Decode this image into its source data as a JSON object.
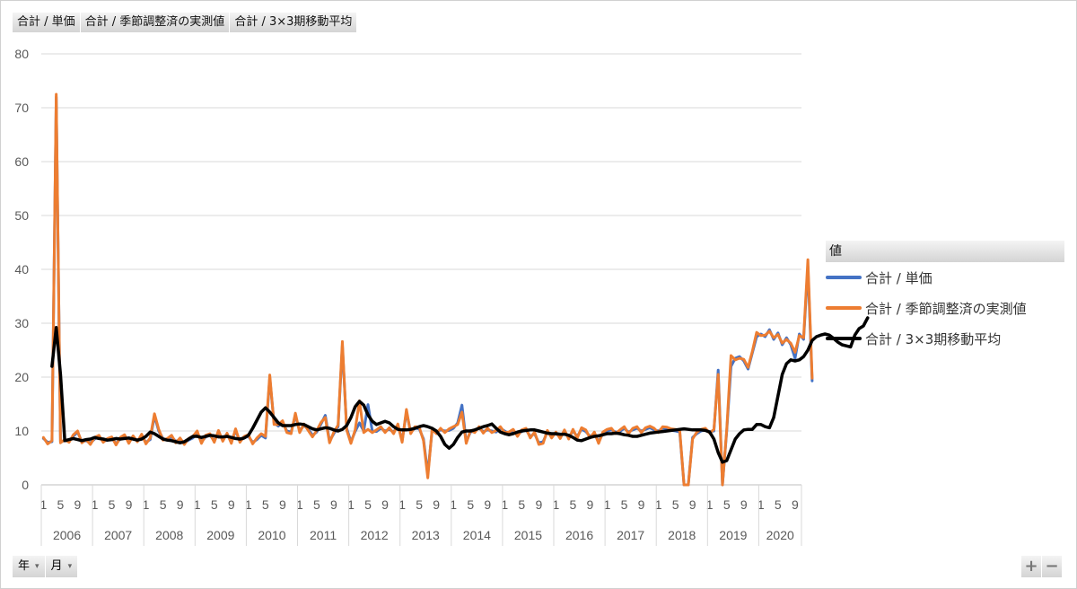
{
  "field_pills": [
    "合計 / 単価",
    "合計 / 季節調整済の実測値",
    "合計 / 3×3期移動平均"
  ],
  "legend": {
    "title": "値",
    "items": [
      {
        "label": "合計 / 単価",
        "color": "#4472C4"
      },
      {
        "label": "合計 / 季節調整済の実測値",
        "color": "#ED7D31"
      },
      {
        "label": "合計 / 3×3期移動平均",
        "color": "#000000"
      }
    ]
  },
  "axis_buttons": [
    {
      "label": "年",
      "arrow": "▾"
    },
    {
      "label": "月",
      "arrow": "▾"
    }
  ],
  "zoom": {
    "plus": "+",
    "minus": "−"
  },
  "chart_data": {
    "type": "line",
    "ylim": [
      0,
      80
    ],
    "yticks": [
      0,
      10,
      20,
      30,
      40,
      50,
      60,
      70,
      80
    ],
    "grid": true,
    "legend_position": "right",
    "x_month_labels": [
      "1",
      "5",
      "9"
    ],
    "years": [
      "2006",
      "2007",
      "2008",
      "2009",
      "2010",
      "2011",
      "2012",
      "2013",
      "2014",
      "2015",
      "2016",
      "2017",
      "2018",
      "2019",
      "2020"
    ],
    "months_in_last_year": 10,
    "series": [
      {
        "name": "合計 / 単価",
        "color": "#4472C4",
        "width": 3,
        "values": [
          8.6,
          7.9,
          8.0,
          72,
          8.0,
          8.2,
          8.1,
          9.0,
          9.8,
          8.0,
          8.2,
          7.8,
          8.5,
          9.0,
          8.1,
          8.3,
          8.6,
          7.7,
          8.5,
          9.0,
          8.0,
          8.8,
          8.2,
          9.1,
          7.9,
          8.4,
          12.8,
          10.0,
          8.6,
          8.3,
          8.9,
          8.1,
          8.4,
          7.8,
          8.3,
          8.7,
          9.6,
          8.0,
          8.9,
          9.2,
          8.2,
          9.7,
          8.4,
          9.3,
          8.0,
          10.0,
          8.2,
          8.7,
          9.0,
          7.9,
          8.4,
          9.2,
          8.7,
          19.9,
          11.5,
          10.9,
          11.6,
          10.0,
          9.8,
          12.9,
          10.0,
          11.0,
          10.4,
          9.2,
          9.8,
          11.3,
          12.9,
          8.1,
          9.5,
          10.8,
          25.9,
          10.5,
          8.0,
          9.9,
          11.5,
          10.0,
          14.9,
          10.0,
          9.9,
          10.5,
          10.0,
          10.3,
          9.8,
          11.0,
          8.2,
          13.5,
          9.8,
          10.5,
          10.4,
          8.5,
          2.0,
          10.0,
          9.8,
          10.2,
          10.0,
          10.1,
          10.5,
          11.5,
          14.8,
          8.0,
          9.8,
          10.0,
          10.5,
          9.9,
          10.2,
          10.0,
          9.8,
          10.5,
          10.0,
          9.5,
          10.0,
          9.3,
          9.9,
          10.2,
          9.0,
          9.5,
          7.8,
          8.0,
          9.8,
          9.0,
          9.5,
          8.9,
          9.9,
          8.8,
          10.0,
          9.0,
          10.3,
          9.9,
          9.0,
          9.5,
          8.0,
          9.5,
          10.0,
          10.2,
          9.8,
          9.9,
          10.5,
          9.8,
          10.2,
          10.5,
          10.0,
          10.3,
          10.6,
          10.2,
          10.0,
          10.5,
          10.4,
          10.1,
          10.0,
          9.8,
          0.0,
          0.0,
          8.8,
          9.5,
          10.0,
          10.2,
          9.9,
          10.0,
          21.3,
          0.0,
          10.0,
          22.0,
          23.5,
          23.8,
          23.0,
          21.5,
          24.5,
          27.5,
          28.0,
          27.5,
          28.8,
          27.0,
          28.2,
          26.0,
          27.3,
          26.0,
          23.5,
          28.0,
          27.0,
          40.5,
          19.3
        ]
      },
      {
        "name": "合計 / 季節調整済の実測値",
        "color": "#ED7D31",
        "width": 3,
        "values": [
          8.8,
          7.6,
          8.2,
          72.5,
          7.8,
          8.4,
          7.9,
          9.3,
          10.0,
          7.8,
          8.4,
          7.5,
          8.8,
          9.2,
          7.9,
          8.6,
          8.9,
          7.4,
          8.8,
          9.3,
          7.7,
          9.1,
          8.0,
          9.4,
          7.6,
          8.7,
          13.2,
          10.3,
          8.3,
          8.6,
          9.2,
          7.8,
          8.7,
          7.5,
          8.6,
          9.0,
          10.0,
          7.7,
          9.2,
          9.5,
          7.9,
          10.1,
          8.1,
          9.6,
          7.7,
          10.4,
          7.9,
          9.0,
          9.3,
          7.6,
          8.7,
          9.5,
          9.0,
          20.4,
          11.2,
          11.2,
          11.9,
          9.7,
          9.5,
          13.3,
          9.7,
          11.3,
          10.1,
          8.9,
          10.1,
          11.6,
          12.5,
          7.8,
          9.8,
          11.1,
          26.6,
          10.2,
          7.7,
          10.2,
          15.6,
          9.7,
          10.3,
          9.7,
          10.2,
          10.8,
          9.7,
          10.6,
          9.5,
          11.3,
          7.9,
          14.0,
          9.5,
          10.8,
          10.7,
          8.2,
          1.3,
          10.3,
          9.5,
          10.5,
          9.7,
          10.4,
          10.8,
          11.2,
          13.5,
          7.7,
          10.1,
          9.7,
          10.8,
          9.6,
          10.5,
          9.7,
          10.1,
          10.8,
          9.7,
          9.8,
          10.3,
          9.0,
          10.2,
          10.5,
          8.7,
          9.8,
          7.5,
          7.7,
          10.1,
          8.7,
          9.8,
          8.6,
          10.2,
          8.5,
          10.3,
          8.7,
          10.6,
          10.2,
          8.7,
          9.8,
          7.7,
          9.8,
          10.3,
          10.5,
          9.5,
          10.2,
          10.8,
          9.5,
          10.5,
          10.8,
          9.7,
          10.6,
          10.9,
          10.5,
          9.7,
          10.8,
          10.7,
          10.4,
          10.3,
          10.1,
          -1.0,
          -1.0,
          8.5,
          9.8,
          10.3,
          10.5,
          9.6,
          10.3,
          20.5,
          -1.0,
          10.3,
          24.0,
          23.2,
          23.5,
          23.3,
          21.8,
          24.8,
          28.3,
          27.7,
          27.8,
          28.5,
          27.3,
          27.9,
          26.3,
          27.0,
          26.3,
          24.6,
          27.7,
          27.3,
          41.8,
          19.8
        ]
      },
      {
        "name": "合計 / 3×3期移動平均",
        "color": "#000000",
        "width": 3.5,
        "x_offset": 2,
        "values": [
          22.0,
          29.2,
          20.5,
          8.2,
          8.4,
          8.6,
          8.4,
          8.2,
          8.4,
          8.5,
          8.8,
          8.6,
          8.5,
          8.3,
          8.4,
          8.6,
          8.5,
          8.6,
          8.7,
          8.5,
          8.3,
          8.5,
          9.0,
          9.8,
          9.5,
          9.0,
          8.5,
          8.3,
          8.2,
          8.0,
          7.8,
          8.0,
          8.5,
          9.0,
          9.0,
          8.8,
          9.0,
          9.2,
          9.1,
          8.9,
          8.9,
          9.0,
          8.8,
          8.6,
          8.5,
          8.7,
          9.2,
          10.5,
          12.0,
          13.5,
          14.3,
          13.5,
          12.5,
          11.5,
          11.0,
          11.0,
          11.0,
          11.2,
          11.3,
          11.2,
          10.8,
          10.4,
          10.2,
          10.4,
          10.6,
          10.5,
          10.2,
          10.0,
          10.3,
          11.0,
          12.5,
          14.5,
          15.5,
          14.8,
          13.0,
          11.8,
          11.2,
          11.5,
          11.8,
          11.5,
          10.8,
          10.3,
          10.2,
          10.2,
          10.3,
          10.5,
          10.8,
          11.0,
          10.8,
          10.5,
          10.0,
          9.0,
          7.5,
          6.8,
          7.5,
          8.8,
          9.8,
          10.0,
          10.0,
          10.2,
          10.5,
          10.8,
          11.0,
          11.3,
          10.5,
          9.8,
          9.5,
          9.3,
          9.5,
          9.8,
          10.0,
          10.1,
          10.2,
          10.2,
          10.0,
          9.8,
          9.6,
          9.5,
          9.5,
          9.4,
          9.4,
          9.2,
          8.8,
          8.3,
          8.2,
          8.5,
          8.8,
          9.0,
          9.1,
          9.3,
          9.5,
          9.5,
          9.6,
          9.5,
          9.3,
          9.2,
          9.0,
          9.0,
          9.2,
          9.4,
          9.6,
          9.7,
          9.8,
          9.9,
          10.0,
          10.1,
          10.2,
          10.3,
          10.4,
          10.3,
          10.2,
          10.2,
          10.2,
          10.1,
          9.8,
          8.5,
          6.0,
          4.2,
          4.5,
          6.5,
          8.5,
          9.5,
          10.2,
          10.3,
          10.3,
          11.2,
          11.2,
          10.8,
          10.6,
          12.5,
          16.5,
          20.5,
          22.5,
          23.2,
          23.0,
          23.2,
          23.8,
          25.0,
          26.8,
          27.5,
          27.8,
          28.0,
          27.8,
          27.2,
          26.5,
          26.0,
          25.8,
          25.6,
          27.8,
          29.0,
          29.5,
          31.0
        ]
      }
    ]
  }
}
